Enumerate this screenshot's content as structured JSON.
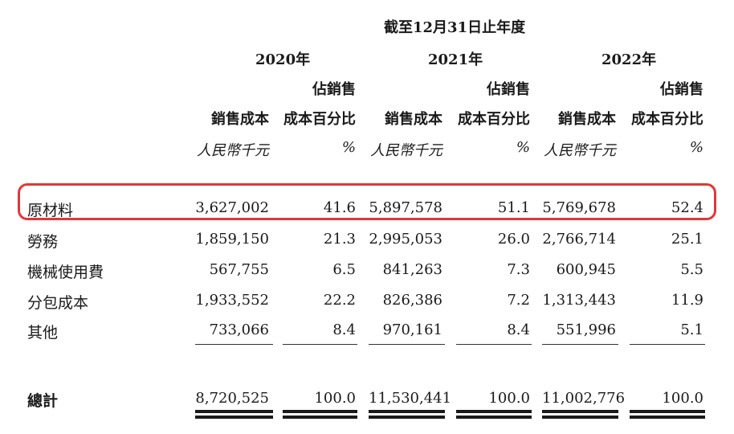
{
  "header": {
    "period": "截至12月31日止年度",
    "years": [
      "2020年",
      "2021年",
      "2022年"
    ],
    "col_sub1": "佔銷售",
    "col_cost": "銷售成本",
    "col_pct": "成本百分比",
    "unit_rmb": "人民幣千元",
    "unit_pct": "%"
  },
  "rows": [
    {
      "label": "原材料",
      "v": [
        "3,627,002",
        "41.6",
        "5,897,578",
        "51.1",
        "5,769,678",
        "52.4"
      ]
    },
    {
      "label": "勞務",
      "v": [
        "1,859,150",
        "21.3",
        "2,995,053",
        "26.0",
        "2,766,714",
        "25.1"
      ]
    },
    {
      "label": "機械使用費",
      "v": [
        "567,755",
        "6.5",
        "841,263",
        "7.3",
        "600,945",
        "5.5"
      ]
    },
    {
      "label": "分包成本",
      "v": [
        "1,933,552",
        "22.2",
        "826,386",
        "7.2",
        "1,313,443",
        "11.9"
      ]
    },
    {
      "label": "其他",
      "v": [
        "733,066",
        "8.4",
        "970,161",
        "8.4",
        "551,996",
        "5.1"
      ]
    }
  ],
  "total": {
    "label": "總計",
    "v": [
      "8,720,525",
      "100.0",
      "11,530,441",
      "100.0",
      "11,002,776",
      "100.0"
    ]
  },
  "highlight_color": "#e3363a"
}
